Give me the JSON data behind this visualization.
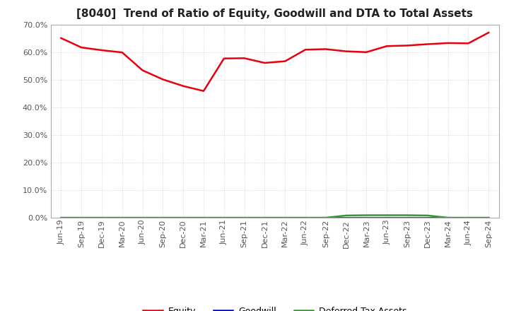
{
  "title": "[8040]  Trend of Ratio of Equity, Goodwill and DTA to Total Assets",
  "x_labels": [
    "Jun-19",
    "Sep-19",
    "Dec-19",
    "Mar-20",
    "Jun-20",
    "Sep-20",
    "Dec-20",
    "Mar-21",
    "Jun-21",
    "Sep-21",
    "Dec-21",
    "Mar-22",
    "Jun-22",
    "Sep-22",
    "Dec-22",
    "Mar-23",
    "Jun-23",
    "Sep-23",
    "Dec-23",
    "Mar-24",
    "Jun-24",
    "Sep-24"
  ],
  "equity": [
    0.652,
    0.618,
    0.608,
    0.6,
    0.535,
    0.502,
    0.478,
    0.46,
    0.578,
    0.579,
    0.562,
    0.568,
    0.61,
    0.612,
    0.604,
    0.601,
    0.623,
    0.625,
    0.63,
    0.634,
    0.633,
    0.672
  ],
  "goodwill": [
    0.0,
    0.0,
    0.0,
    0.0,
    0.0,
    0.0,
    0.0,
    0.0,
    0.0,
    0.0,
    0.0,
    0.0,
    0.0,
    0.0,
    0.0,
    0.0,
    0.0,
    0.0,
    0.0,
    0.0,
    0.0,
    0.0
  ],
  "dta": [
    0.0,
    0.0,
    0.0,
    0.0,
    0.0,
    0.0,
    0.0,
    0.0,
    0.0,
    0.0,
    0.0,
    0.0,
    0.0,
    0.0,
    0.008,
    0.009,
    0.009,
    0.009,
    0.008,
    0.0,
    0.0,
    0.0
  ],
  "equity_color": "#e8000d",
  "goodwill_color": "#0000cc",
  "dta_color": "#339933",
  "ylim": [
    0.0,
    0.7
  ],
  "yticks": [
    0.0,
    0.1,
    0.2,
    0.3,
    0.4,
    0.5,
    0.6,
    0.7
  ],
  "background_color": "#ffffff",
  "grid_color": "#bbbbbb",
  "title_fontsize": 11,
  "tick_fontsize": 8,
  "legend_fontsize": 9
}
